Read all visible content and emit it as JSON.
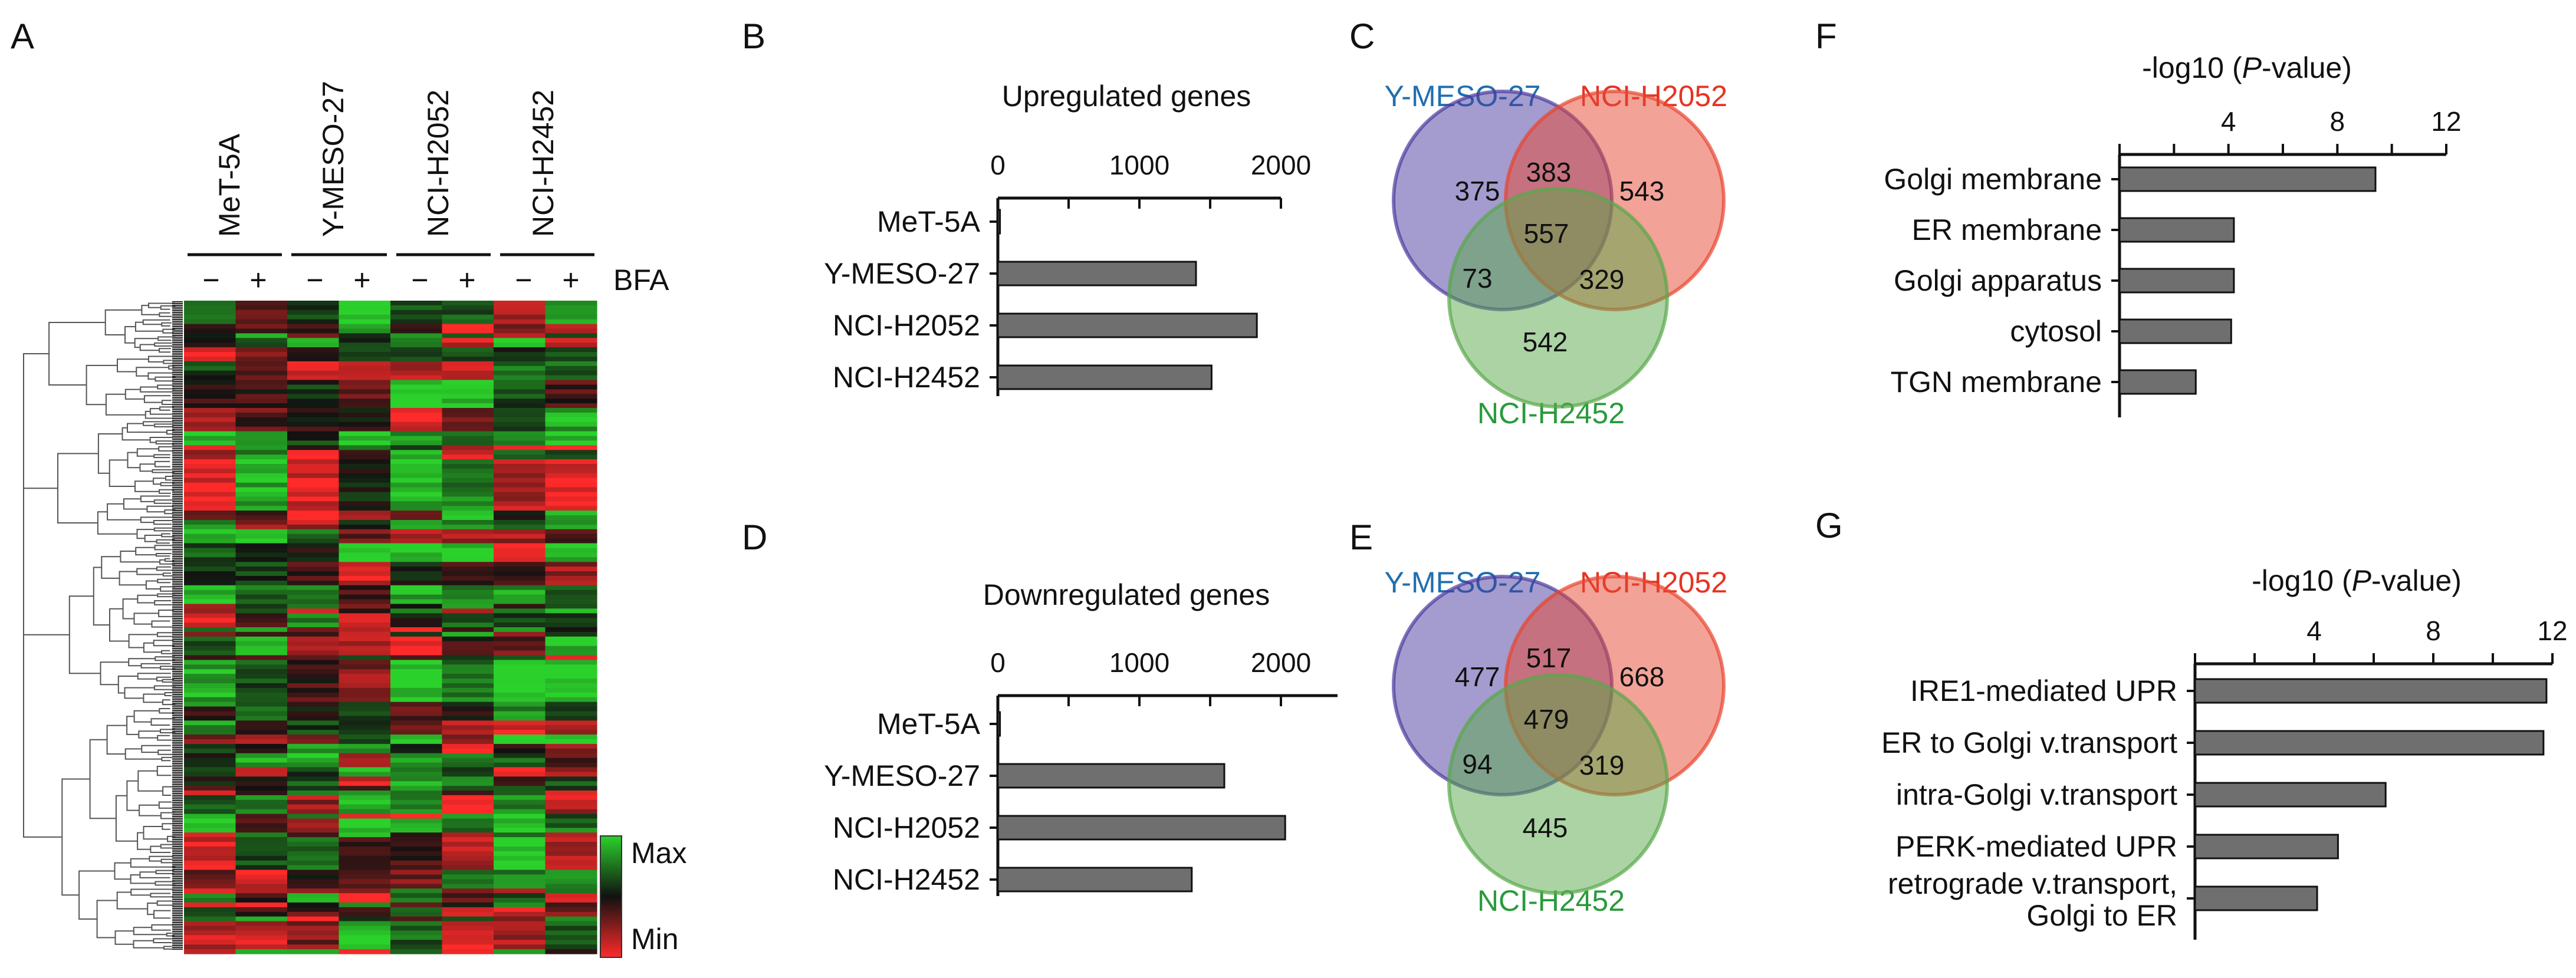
{
  "colors": {
    "heat_high": "#2bd12b",
    "heat_low": "#ff2a2a",
    "heat_mid": "#111111",
    "bar_fill": "#6f6f6f",
    "venn_ymeso": "#4a3a9e",
    "venn_h2052": "#e8452f",
    "venn_h2452": "#58a84a",
    "ymeso_text": "#1f6fb0",
    "h2052_text": "#e53424",
    "h2452_text": "#2a9a3c"
  },
  "panel_labels": {
    "A": "A",
    "B": "B",
    "C": "C",
    "D": "D",
    "E": "E",
    "F": "F",
    "G": "G"
  },
  "heatmap": {
    "columns": [
      "MeT-5A",
      "Y-MESO-27",
      "NCI-H2052",
      "NCI-H2452"
    ],
    "treatments": [
      "−",
      "+",
      "−",
      "+",
      "−",
      "+",
      "−",
      "+"
    ],
    "treatment_label": "BFA",
    "legend_max": "Max",
    "legend_min": "Min"
  },
  "chart_data": [
    {
      "type": "bar",
      "orientation": "horizontal",
      "title": "Upregulated genes",
      "categories": [
        "MeT-5A",
        "Y-MESO-27",
        "NCI-H2052",
        "NCI-H2452"
      ],
      "values": [
        15,
        1400,
        1830,
        1510
      ],
      "xlim": [
        0,
        2000
      ],
      "x_ticks": [
        "0",
        "1000",
        "2000"
      ]
    },
    {
      "type": "bar",
      "orientation": "horizontal",
      "title": "Downregulated genes",
      "categories": [
        "MeT-5A",
        "Y-MESO-27",
        "NCI-H2052",
        "NCI-H2452"
      ],
      "values": [
        15,
        1600,
        2030,
        1370
      ],
      "xlim": [
        0,
        2400
      ],
      "x_ticks": [
        "0",
        "1000",
        "2000"
      ]
    },
    {
      "type": "venn",
      "sets": [
        "Y-MESO-27",
        "NCI-H2052",
        "NCI-H2452"
      ],
      "regions": {
        "A_only": 375,
        "B_only": 543,
        "C_only": 542,
        "AB": 383,
        "AC": 73,
        "BC": 329,
        "ABC": 557
      }
    },
    {
      "type": "venn",
      "sets": [
        "Y-MESO-27",
        "NCI-H2052",
        "NCI-H2452"
      ],
      "regions": {
        "A_only": 477,
        "B_only": 668,
        "C_only": 445,
        "AB": 517,
        "AC": 94,
        "BC": 319,
        "ABC": 479
      }
    },
    {
      "type": "bar",
      "orientation": "horizontal",
      "xlabel_prefix": "-log10 (",
      "xlabel_italic": "P",
      "xlabel_suffix": "-value)",
      "categories": [
        "Golgi membrane",
        "ER membrane",
        "Golgi apparatus",
        "cytosol",
        "TGN membrane"
      ],
      "values": [
        9.4,
        4.2,
        4.2,
        4.1,
        2.8
      ],
      "xlim": [
        0,
        12
      ],
      "x_ticks": [
        "4",
        "8",
        "12"
      ]
    },
    {
      "type": "bar",
      "orientation": "horizontal",
      "xlabel_prefix": "-log10 (",
      "xlabel_italic": "P",
      "xlabel_suffix": "-value)",
      "categories": [
        "IRE1-mediated UPR",
        "ER to Golgi v.transport",
        "intra-Golgi v.transport",
        "PERK-mediated UPR",
        [
          "retrograde v.transport,",
          "Golgi to ER"
        ]
      ],
      "values": [
        11.8,
        11.7,
        6.4,
        4.8,
        4.1
      ],
      "xlim": [
        0,
        12
      ],
      "x_ticks": [
        "4",
        "8",
        "12"
      ]
    }
  ]
}
